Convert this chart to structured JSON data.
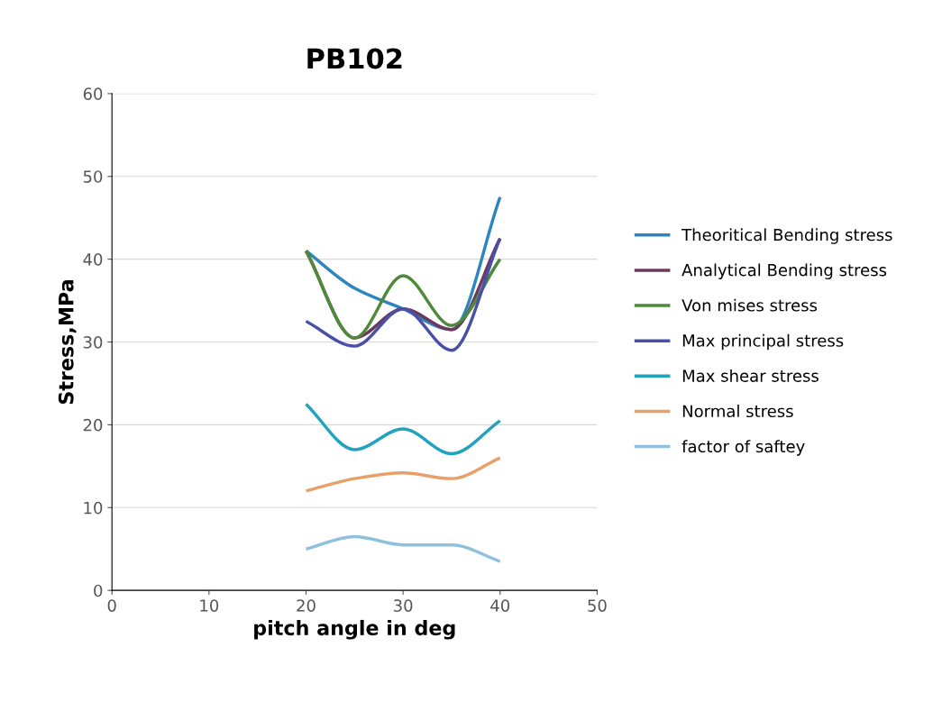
{
  "chart_data": {
    "type": "line",
    "title": "PB102",
    "xlabel": "pitch angle in deg",
    "ylabel": "Stress,MPa",
    "x": [
      20,
      25,
      30,
      35,
      40
    ],
    "series": [
      {
        "name": "Theoritical Bending stress",
        "color": "#2e86c1",
        "values": [
          41,
          36.5,
          34,
          31.5,
          47.5
        ]
      },
      {
        "name": "Analytical Bending stress",
        "color": "#6b3a5e",
        "values": [
          41,
          30.5,
          34,
          31.5,
          42.5
        ]
      },
      {
        "name": "Von mises stress",
        "color": "#4e8a3a",
        "values": [
          41,
          30.5,
          38,
          32,
          40
        ]
      },
      {
        "name": "Max principal stress",
        "color": "#4a4fa8",
        "values": [
          32.5,
          29.5,
          34,
          29,
          42.5
        ]
      },
      {
        "name": "Max shear stress",
        "color": "#21a3be",
        "values": [
          22.5,
          17,
          19.5,
          16.5,
          20.5
        ]
      },
      {
        "name": "Normal stress",
        "color": "#e8a06a",
        "values": [
          12,
          13.5,
          14.2,
          13.5,
          16
        ]
      },
      {
        "name": "factor of saftey",
        "color": "#8fc0dc",
        "values": [
          5,
          6.5,
          5.5,
          5.5,
          3.5
        ]
      }
    ],
    "xlim": [
      0,
      50
    ],
    "xticks": [
      0,
      10,
      20,
      30,
      40,
      50
    ],
    "ylim": [
      0,
      60
    ],
    "yticks": [
      0,
      10,
      20,
      30,
      40,
      50,
      60
    ],
    "grid": "y",
    "legend": "right",
    "marker": "none",
    "line_style": "solid"
  }
}
